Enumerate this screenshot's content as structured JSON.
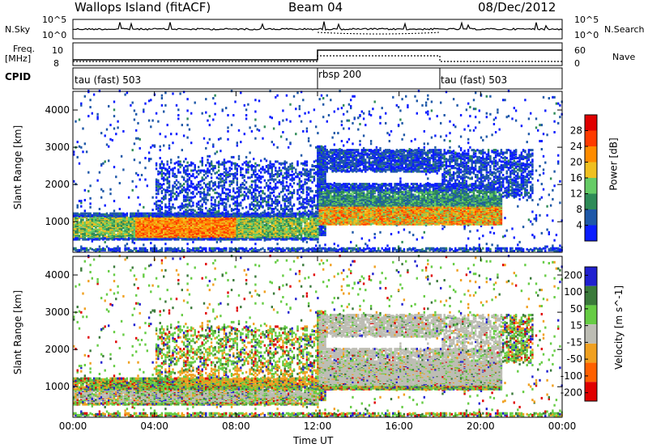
{
  "header": {
    "station": "Wallops Island (fitACF)",
    "beam": "Beam 04",
    "date": "08/Dec/2012"
  },
  "strips": {
    "nsky_label": "N.Sky",
    "nsearch_label": "N.Search",
    "noise_tick_top": "10^5",
    "noise_tick_bottom": "10^0",
    "freq_label": "Freq.",
    "freq_unit": "[MHz]",
    "freq_ticks": [
      "10",
      "8"
    ],
    "nave_label": "Nave",
    "nave_ticks": [
      "60",
      "0"
    ],
    "cpid_label": "CPID",
    "cpid_segments": [
      {
        "name": "tau (fast) 503",
        "start_hour": 0,
        "end_hour": 12
      },
      {
        "name": "rbsp 200",
        "start_hour": 12,
        "end_hour": 18
      },
      {
        "name": "tau (fast) 503",
        "start_hour": 18,
        "end_hour": 24
      }
    ]
  },
  "colors": {
    "power": [
      "#0b1dff",
      "#1e58a8",
      "#2e8b57",
      "#66cc66",
      "#f0c020",
      "#ff8c00",
      "#ff3b00",
      "#e00000"
    ],
    "velocity": [
      "#2020d0",
      "#3a7a3a",
      "#66cc44",
      "#bdbdb4",
      "#f0a020",
      "#ff6000",
      "#e00000"
    ]
  },
  "chart_data": [
    {
      "type": "heatmap",
      "name": "power",
      "xlabel": "",
      "ylabel": "Slant Range [km]",
      "xlim": [
        0,
        24
      ],
      "ylim": [
        180,
        4500
      ],
      "yticks": [
        "1000",
        "2000",
        "3000",
        "4000"
      ],
      "colorbar": {
        "label": "Power [dB]",
        "range": [
          0,
          32
        ],
        "ticks": [
          "4",
          "8",
          "12",
          "16",
          "20",
          "24",
          "28"
        ]
      },
      "bands": [
        {
          "start_hour": 0,
          "end_hour": 12,
          "range_km": [
            500,
            1150
          ],
          "level": "moderate to strong"
        },
        {
          "start_hour": 12,
          "end_hour": 21,
          "range_km": [
            900,
            1600
          ],
          "level": "strong"
        },
        {
          "start_hour": 12,
          "end_hour": 18,
          "range_km": [
            2300,
            2900
          ],
          "level": "weak"
        }
      ]
    },
    {
      "type": "heatmap",
      "name": "velocity",
      "xlabel": "Time UT",
      "ylabel": "Slant Range [km]",
      "xlim": [
        0,
        24
      ],
      "ylim": [
        180,
        4500
      ],
      "xticks": [
        "00:00",
        "04:00",
        "08:00",
        "12:00",
        "16:00",
        "20:00",
        "00:00"
      ],
      "yticks": [
        "1000",
        "2000",
        "3000",
        "4000"
      ],
      "colorbar": {
        "label": "Velocity [m s^-1]",
        "ticks": [
          "200",
          "100",
          "50",
          "15",
          "-15",
          "-50",
          "-100",
          "-200"
        ]
      }
    }
  ]
}
